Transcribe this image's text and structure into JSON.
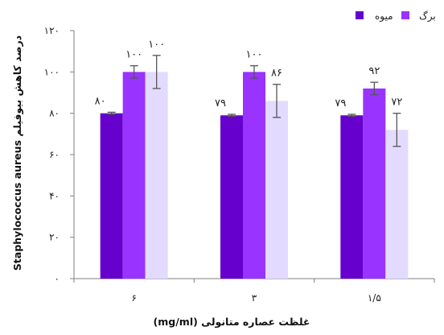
{
  "chart_data": {
    "type": "bar",
    "categories": [
      "۶",
      "۳",
      "۱/۵"
    ],
    "series": [
      {
        "name": "میوه",
        "color": "#6600cc",
        "values": [
          80,
          79,
          79
        ],
        "errors": [
          0.5,
          0.5,
          0.5
        ],
        "labels": [
          "۸۰",
          "۷۹",
          "۷۹"
        ]
      },
      {
        "name": "برگ",
        "color": "#9933ff",
        "values": [
          100,
          100,
          92
        ],
        "errors": [
          3,
          3,
          3
        ],
        "labels": [
          "۱۰۰",
          "۱۰۰",
          "۹۲"
        ]
      },
      {
        "name": "",
        "color": "#e2dbff",
        "values": [
          100,
          86,
          72
        ],
        "errors": [
          8,
          8,
          8
        ],
        "labels": [
          "۱۰۰",
          "۸۶",
          "۷۲"
        ]
      }
    ],
    "ylim": [
      0,
      120
    ],
    "yticks": [
      0,
      20,
      40,
      60,
      80,
      100,
      120
    ],
    "ytick_labels": [
      "۰",
      "۲۰",
      "۴۰",
      "۶۰",
      "۸۰",
      "۱۰۰",
      "۱۲۰"
    ],
    "xlabel": "غلظت عصاره متانولی (mg/ml)",
    "ylabel": "درصد کاهش بیوفیلم Staphylococcus aureus",
    "grid": false,
    "legend_position": "top-right"
  }
}
